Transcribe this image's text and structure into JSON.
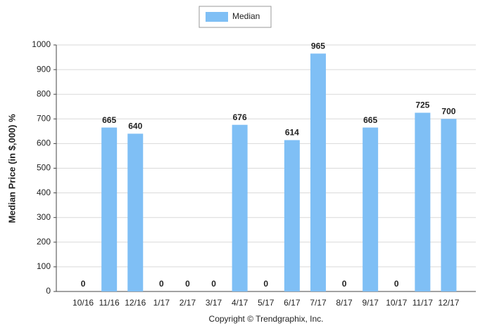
{
  "chart_data": {
    "type": "bar",
    "y_label": "Median Price (in $,000) %",
    "legend_label": "Median",
    "footer": "Copyright © Trendgraphix, Inc.",
    "categories": [
      "10/16",
      "11/16",
      "12/16",
      "1/17",
      "2/17",
      "3/17",
      "4/17",
      "5/17",
      "6/17",
      "7/17",
      "8/17",
      "9/17",
      "10/17",
      "11/17",
      "12/17"
    ],
    "series": [
      {
        "name": "Median",
        "color": "#7fbff5",
        "values": [
          0,
          665,
          640,
          0,
          0,
          0,
          676,
          0,
          614,
          965,
          0,
          665,
          0,
          725,
          700
        ]
      }
    ],
    "ylim": [
      0,
      1000
    ],
    "yticks": [
      0,
      100,
      200,
      300,
      400,
      500,
      600,
      700,
      800,
      900,
      1000
    ],
    "grid": true
  }
}
